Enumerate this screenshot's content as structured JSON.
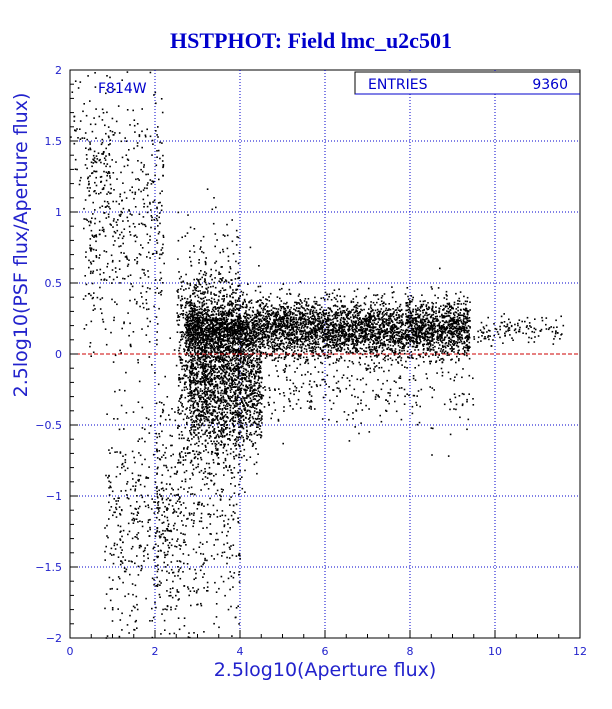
{
  "chart_data": {
    "type": "scatter",
    "title": "HSTPHOT: Field lmc_u2c501",
    "xlabel": "2.5log10(Aperture flux)",
    "ylabel": "2.5log10(PSF flux/Aperture flux)",
    "filter_label": "F814W",
    "stats": {
      "label": "ENTRIES",
      "value": "9360"
    },
    "xlim": [
      0,
      12
    ],
    "ylim": [
      -2,
      2
    ],
    "x_ticks": [
      0,
      2,
      4,
      6,
      8,
      10,
      12
    ],
    "y_ticks": [
      -2,
      -1.5,
      -1,
      -0.5,
      0,
      0.5,
      1,
      1.5,
      2
    ],
    "x_tick_labels": [
      "0",
      "2",
      "4",
      "6",
      "8",
      "10",
      "12"
    ],
    "y_tick_labels": [
      "−2",
      "−1.5",
      "−1",
      "−0.5",
      "0",
      "0.5",
      "1",
      "1.5",
      "2"
    ],
    "reference_line_y": 0,
    "grid": true,
    "point_color": "#000000",
    "reference_line_color": "#cc0000",
    "grid_color": "#0000cc",
    "axis_color": "#2222cc",
    "title_color": "#0000cc",
    "density_model": {
      "entries": 9360,
      "components": [
        {
          "x_range": [
            2.7,
            9.4
          ],
          "y_center": 0.18,
          "y_spread": 0.1,
          "weight": 0.45
        },
        {
          "x_range": [
            2.8,
            4.5
          ],
          "y_center": -0.2,
          "y_spread": 0.25,
          "weight": 0.15
        },
        {
          "x_range": [
            2.5,
            4.0
          ],
          "y_center": 0.05,
          "y_spread": 0.35,
          "weight": 0.1
        },
        {
          "x_range": [
            9.4,
            11.6
          ],
          "y_center": 0.17,
          "y_spread": 0.05,
          "weight": 0.012
        },
        {
          "x_range": [
            0.3,
            2.2
          ],
          "y_center": 0.9,
          "y_spread": 0.45,
          "weight": 0.05
        },
        {
          "x_range": [
            0.8,
            2.6
          ],
          "y_center": -1.2,
          "y_spread": 0.45,
          "weight": 0.04
        },
        {
          "x_range": [
            2.0,
            4.0
          ],
          "y_center": -1.1,
          "y_spread": 0.5,
          "weight": 0.05
        },
        {
          "x_range": [
            0.0,
            1.0
          ],
          "y_center": 1.5,
          "y_spread": 0.25,
          "weight": 0.008
        },
        {
          "x_range": [
            4.0,
            9.5
          ],
          "y_center": -0.25,
          "y_spread": 0.15,
          "weight": 0.03
        }
      ]
    }
  }
}
